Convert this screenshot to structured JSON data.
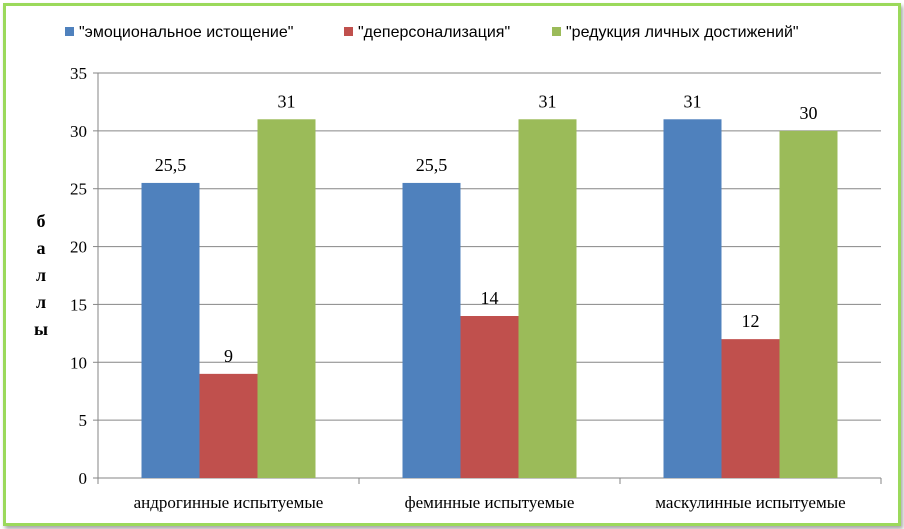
{
  "chart_data": {
    "type": "bar",
    "categories": [
      "андрогинные испытуемые",
      "феминные испытуемые",
      "маскулинные  испытуемые"
    ],
    "series": [
      {
        "name": "\"эмоциональное истощение\"",
        "values": [
          25.5,
          25.5,
          31
        ],
        "labels": [
          "25,5",
          "25,5",
          "31"
        ],
        "color": "#4f81bd"
      },
      {
        "name": "\"деперсонализация\"",
        "values": [
          9,
          14,
          12
        ],
        "labels": [
          "9",
          "14",
          "12"
        ],
        "color": "#c0504d"
      },
      {
        "name": "\"редукция личных достижений\"",
        "values": [
          31,
          31,
          30
        ],
        "labels": [
          "31",
          "31",
          "30"
        ],
        "color": "#9bbb59"
      }
    ],
    "ylabel": "баллы",
    "ylim": [
      0,
      35
    ],
    "yticks": [
      0,
      5,
      10,
      15,
      20,
      25,
      30,
      35
    ],
    "grid": true,
    "legend": "top",
    "frame_color": "#9bd95b"
  }
}
